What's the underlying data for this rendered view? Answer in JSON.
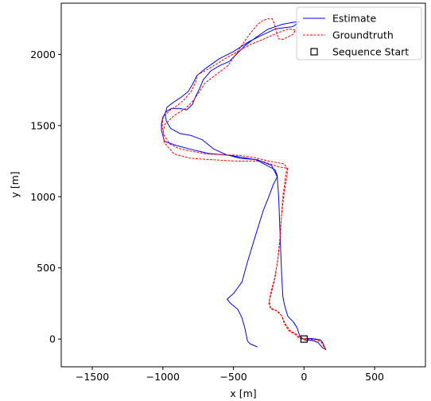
{
  "chart_data": {
    "type": "line",
    "xlabel": "x [m]",
    "ylabel": "y [m]",
    "xlim": [
      -1720,
      860
    ],
    "ylim": [
      -195,
      2360
    ],
    "xticks": [
      -1500,
      -1000,
      -500,
      0,
      500
    ],
    "yticks": [
      0,
      500,
      1000,
      1500,
      2000
    ],
    "grid": false,
    "legend_position": "top-right",
    "series": [
      {
        "name": "Estimate",
        "color": "#0000ff",
        "style": "solid",
        "points": [
          [
            0,
            0
          ],
          [
            30,
            5
          ],
          [
            60,
            3
          ],
          [
            95,
            -2
          ],
          [
            115,
            -5
          ],
          [
            130,
            -20
          ],
          [
            145,
            -55
          ],
          [
            155,
            -75
          ],
          [
            130,
            -60
          ],
          [
            100,
            -25
          ],
          [
            60,
            -10
          ],
          [
            10,
            -8
          ],
          [
            -5,
            0
          ],
          [
            -30,
            20
          ],
          [
            -50,
            80
          ],
          [
            -75,
            120
          ],
          [
            -115,
            160
          ],
          [
            -140,
            245
          ],
          [
            -150,
            300
          ],
          [
            -158,
            440
          ],
          [
            -165,
            620
          ],
          [
            -172,
            800
          ],
          [
            -180,
            1000
          ],
          [
            -190,
            1150
          ],
          [
            -205,
            1190
          ],
          [
            -340,
            1260
          ],
          [
            -520,
            1290
          ],
          [
            -680,
            1305
          ],
          [
            -790,
            1330
          ],
          [
            -905,
            1360
          ],
          [
            -990,
            1390
          ],
          [
            -1010,
            1470
          ],
          [
            -1010,
            1510
          ],
          [
            -1000,
            1560
          ],
          [
            -975,
            1600
          ],
          [
            -940,
            1620
          ],
          [
            -880,
            1620
          ],
          [
            -830,
            1610
          ],
          [
            -790,
            1650
          ],
          [
            -770,
            1700
          ],
          [
            -740,
            1760
          ],
          [
            -715,
            1820
          ],
          [
            -660,
            1885
          ],
          [
            -600,
            1920
          ],
          [
            -530,
            1950
          ],
          [
            -480,
            2000
          ],
          [
            -420,
            2060
          ],
          [
            -340,
            2120
          ],
          [
            -260,
            2175
          ],
          [
            -160,
            2210
          ],
          [
            -80,
            2225
          ],
          [
            -30,
            2230
          ],
          [
            -80,
            2195
          ],
          [
            -200,
            2180
          ],
          [
            -290,
            2140
          ],
          [
            -390,
            2090
          ],
          [
            -500,
            2020
          ],
          [
            -600,
            1970
          ],
          [
            -700,
            1900
          ],
          [
            -760,
            1850
          ],
          [
            -790,
            1790
          ],
          [
            -820,
            1740
          ],
          [
            -870,
            1700
          ],
          [
            -930,
            1660
          ],
          [
            -970,
            1630
          ],
          [
            -985,
            1580
          ],
          [
            -975,
            1530
          ],
          [
            -945,
            1480
          ],
          [
            -880,
            1445
          ],
          [
            -800,
            1430
          ],
          [
            -720,
            1400
          ],
          [
            -640,
            1335
          ],
          [
            -550,
            1295
          ],
          [
            -450,
            1270
          ],
          [
            -330,
            1260
          ],
          [
            -230,
            1220
          ],
          [
            -190,
            1140
          ],
          [
            -220,
            1080
          ],
          [
            -250,
            1000
          ],
          [
            -290,
            900
          ],
          [
            -340,
            740
          ],
          [
            -395,
            560
          ],
          [
            -440,
            400
          ],
          [
            -500,
            320
          ],
          [
            -545,
            280
          ],
          [
            -520,
            250
          ],
          [
            -470,
            210
          ],
          [
            -440,
            150
          ],
          [
            -420,
            80
          ],
          [
            -410,
            30
          ],
          [
            -400,
            -15
          ],
          [
            -380,
            -35
          ],
          [
            -330,
            -55
          ]
        ]
      },
      {
        "name": "Groundtruth",
        "color": "#ff0000",
        "style": "dashed",
        "points": [
          [
            155,
            -75
          ],
          [
            140,
            -55
          ],
          [
            125,
            -25
          ],
          [
            105,
            -5
          ],
          [
            70,
            -5
          ],
          [
            40,
            0
          ],
          [
            10,
            2
          ],
          [
            -20,
            0
          ],
          [
            -35,
            15
          ],
          [
            -55,
            35
          ],
          [
            -100,
            60
          ],
          [
            -135,
            110
          ],
          [
            -155,
            160
          ],
          [
            -185,
            195
          ],
          [
            -230,
            210
          ],
          [
            -250,
            250
          ],
          [
            -235,
            330
          ],
          [
            -210,
            420
          ],
          [
            -185,
            560
          ],
          [
            -170,
            700
          ],
          [
            -160,
            860
          ],
          [
            -145,
            1000
          ],
          [
            -120,
            1150
          ],
          [
            -115,
            1200
          ],
          [
            -180,
            1210
          ],
          [
            -300,
            1250
          ],
          [
            -480,
            1250
          ],
          [
            -650,
            1260
          ],
          [
            -800,
            1270
          ],
          [
            -920,
            1300
          ],
          [
            -990,
            1380
          ],
          [
            -1000,
            1450
          ],
          [
            -985,
            1510
          ],
          [
            -920,
            1570
          ],
          [
            -840,
            1620
          ],
          [
            -780,
            1680
          ],
          [
            -740,
            1740
          ],
          [
            -700,
            1800
          ],
          [
            -620,
            1860
          ],
          [
            -540,
            1920
          ],
          [
            -490,
            1990
          ],
          [
            -430,
            2080
          ],
          [
            -380,
            2150
          ],
          [
            -330,
            2210
          ],
          [
            -290,
            2240
          ],
          [
            -255,
            2250
          ],
          [
            -225,
            2250
          ],
          [
            -210,
            2215
          ],
          [
            -195,
            2155
          ],
          [
            -180,
            2110
          ],
          [
            -150,
            2105
          ],
          [
            -120,
            2120
          ],
          [
            -80,
            2140
          ],
          [
            -60,
            2170
          ],
          [
            -110,
            2180
          ],
          [
            -190,
            2150
          ],
          [
            -280,
            2110
          ],
          [
            -380,
            2070
          ],
          [
            -470,
            2020
          ],
          [
            -560,
            1970
          ],
          [
            -640,
            1920
          ],
          [
            -690,
            1890
          ],
          [
            -750,
            1860
          ],
          [
            -770,
            1800
          ],
          [
            -800,
            1740
          ],
          [
            -850,
            1680
          ],
          [
            -900,
            1640
          ],
          [
            -960,
            1600
          ],
          [
            -1000,
            1550
          ],
          [
            -1005,
            1490
          ],
          [
            -990,
            1430
          ],
          [
            -950,
            1370
          ],
          [
            -890,
            1340
          ],
          [
            -800,
            1320
          ],
          [
            -690,
            1300
          ],
          [
            -560,
            1295
          ],
          [
            -450,
            1290
          ],
          [
            -350,
            1275
          ],
          [
            -250,
            1250
          ],
          [
            -140,
            1230
          ],
          [
            -120,
            1200
          ],
          [
            -130,
            1150
          ],
          [
            -150,
            1000
          ],
          [
            -160,
            860
          ],
          [
            -170,
            720
          ],
          [
            -185,
            570
          ],
          [
            -205,
            430
          ],
          [
            -230,
            330
          ],
          [
            -245,
            270
          ],
          [
            -240,
            220
          ],
          [
            -195,
            200
          ],
          [
            -160,
            165
          ],
          [
            -140,
            110
          ],
          [
            -110,
            60
          ],
          [
            -60,
            30
          ],
          [
            -40,
            10
          ],
          [
            -10,
            -2
          ],
          [
            30,
            -5
          ],
          [
            80,
            -5
          ],
          [
            120,
            -20
          ],
          [
            140,
            -45
          ],
          [
            155,
            -75
          ]
        ]
      },
      {
        "name": "Sequence Start",
        "color": "#000000",
        "style": "marker-square",
        "points": [
          [
            0,
            0
          ]
        ]
      }
    ]
  }
}
